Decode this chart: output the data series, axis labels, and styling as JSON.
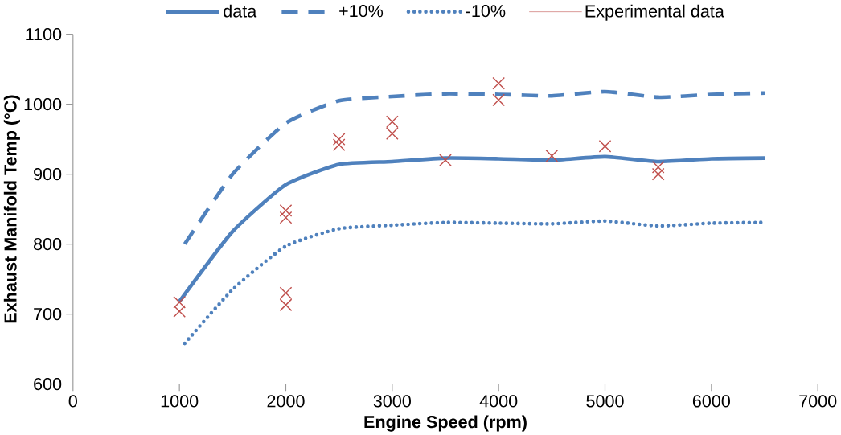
{
  "chart_data": {
    "type": "line",
    "xlabel": "Engine Speed (rpm)",
    "ylabel": "Exhaust Manifold Temp (°C)",
    "xlim": [
      0,
      7000
    ],
    "xticks": [
      0,
      1000,
      2000,
      3000,
      4000,
      5000,
      6000,
      7000
    ],
    "ylim": [
      600,
      1100
    ],
    "yticks": [
      600,
      700,
      800,
      900,
      1000,
      1100
    ],
    "grid": false,
    "legend": "top",
    "series": [
      {
        "name": "data",
        "color": "#4f81bd",
        "line_style": "solid",
        "marker": "none",
        "x": [
          1000,
          1500,
          2000,
          2500,
          3000,
          3500,
          4000,
          4500,
          5000,
          5500,
          6000,
          6500
        ],
        "values": [
          718,
          818,
          885,
          914,
          918,
          923,
          922,
          920,
          925,
          918,
          922,
          923
        ]
      },
      {
        "name": "+10%",
        "color": "#4f81bd",
        "line_style": "dashed",
        "marker": "none",
        "x": [
          1050,
          1500,
          2000,
          2500,
          3000,
          3500,
          4000,
          4500,
          5000,
          5500,
          6000,
          6500
        ],
        "values": [
          800,
          900,
          973,
          1005,
          1011,
          1015,
          1014,
          1012,
          1018,
          1010,
          1014,
          1016
        ]
      },
      {
        "name": "-10%",
        "color": "#4f81bd",
        "line_style": "dotted",
        "marker": "none",
        "x": [
          1050,
          1500,
          2000,
          2500,
          3000,
          3500,
          4000,
          4500,
          5000,
          5500,
          6000,
          6500
        ],
        "values": [
          658,
          735,
          797,
          822,
          827,
          831,
          830,
          829,
          833,
          826,
          830,
          831
        ]
      },
      {
        "name": "Experimental data",
        "type": "scatter",
        "color": "#c0504d",
        "marker": "cross",
        "x": [
          1000,
          1000,
          2000,
          2000,
          2000,
          2000,
          2500,
          2500,
          3000,
          3000,
          3500,
          4000,
          4000,
          4500,
          5000,
          5500,
          5500
        ],
        "values": [
          717,
          704,
          848,
          838,
          730,
          713,
          950,
          942,
          975,
          958,
          920,
          1030,
          1006,
          926,
          940,
          910,
          900
        ]
      }
    ]
  }
}
